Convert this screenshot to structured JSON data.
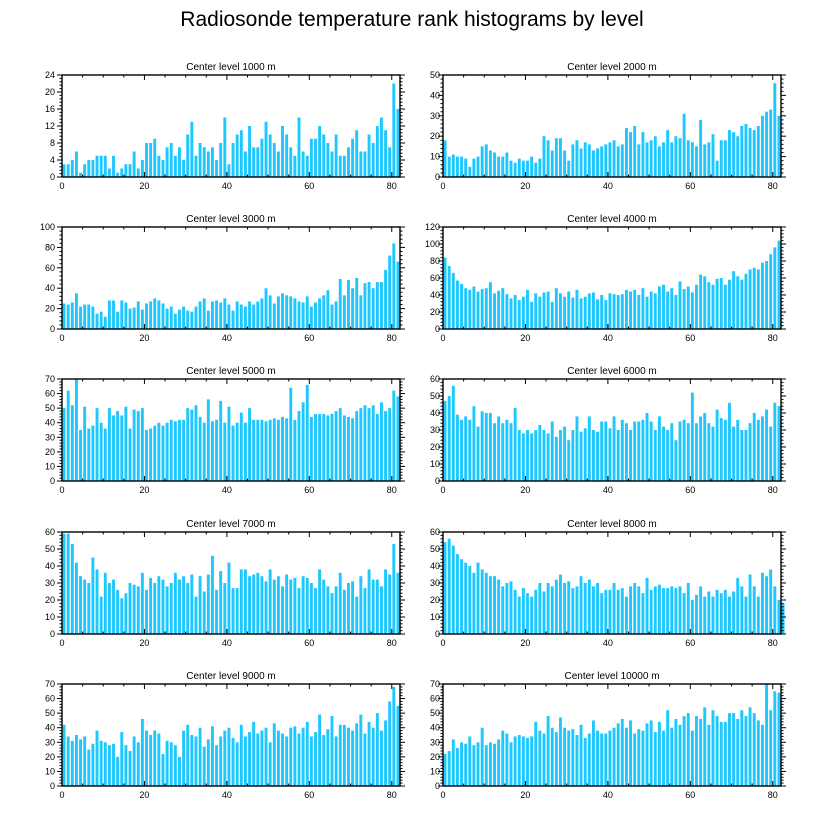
{
  "figure": {
    "title": "Radiosonde temperature rank histograms by level",
    "bar_color": "#1ec8ff"
  },
  "chart_data": [
    {
      "type": "bar",
      "title": "Center level 1000 m",
      "xlim": [
        0,
        82
      ],
      "ylim": [
        0,
        24
      ],
      "xticks": [
        0,
        20,
        40,
        60,
        80
      ],
      "yticks": [
        0,
        4,
        8,
        12,
        16,
        20,
        24
      ],
      "values": [
        3,
        3,
        4,
        6,
        1,
        3,
        4,
        4,
        5,
        5,
        5,
        2,
        5,
        1,
        2,
        3,
        3,
        6,
        2,
        4,
        8,
        8,
        9,
        5,
        4,
        7,
        8,
        5,
        7,
        4,
        10,
        13,
        5,
        8,
        7,
        6,
        7,
        4,
        8,
        14,
        3,
        8,
        10,
        11,
        6,
        12,
        7,
        7,
        9,
        13,
        10,
        8,
        6,
        12,
        10,
        7,
        5,
        14,
        6,
        5,
        9,
        9,
        12,
        10,
        8,
        6,
        10,
        5,
        5,
        7,
        9,
        11,
        6,
        6,
        10,
        8,
        12,
        14,
        11,
        7,
        22,
        16
      ]
    },
    {
      "type": "bar",
      "title": "Center level 2000 m",
      "xlim": [
        0,
        82
      ],
      "ylim": [
        0,
        50
      ],
      "xticks": [
        0,
        20,
        40,
        60,
        80
      ],
      "yticks": [
        0,
        10,
        20,
        30,
        40,
        50
      ],
      "values": [
        18,
        10,
        11,
        10,
        10,
        9,
        5,
        9,
        10,
        15,
        16,
        13,
        12,
        10,
        10,
        12,
        8,
        7,
        9,
        8,
        8,
        10,
        7,
        9,
        20,
        18,
        13,
        19,
        19,
        13,
        8,
        16,
        18,
        14,
        17,
        16,
        13,
        14,
        15,
        16,
        17,
        18,
        15,
        16,
        24,
        22,
        25,
        16,
        22,
        17,
        18,
        20,
        15,
        17,
        23,
        17,
        20,
        19,
        31,
        18,
        17,
        15,
        28,
        16,
        17,
        21,
        8,
        18,
        18,
        23,
        22,
        20,
        25,
        26,
        24,
        23,
        25,
        30,
        32,
        33,
        46,
        30
      ]
    },
    {
      "type": "bar",
      "title": "Center level 3000 m",
      "xlim": [
        0,
        82
      ],
      "ylim": [
        0,
        100
      ],
      "xticks": [
        0,
        20,
        40,
        60,
        80
      ],
      "yticks": [
        0,
        20,
        40,
        60,
        80,
        100
      ],
      "values": [
        25,
        24,
        26,
        35,
        22,
        24,
        24,
        22,
        15,
        17,
        12,
        28,
        28,
        17,
        28,
        26,
        20,
        21,
        27,
        19,
        25,
        27,
        30,
        28,
        25,
        20,
        22,
        15,
        19,
        22,
        18,
        17,
        22,
        27,
        30,
        18,
        27,
        28,
        26,
        30,
        24,
        18,
        27,
        24,
        22,
        27,
        24,
        27,
        30,
        40,
        33,
        25,
        32,
        35,
        33,
        32,
        30,
        27,
        26,
        32,
        22,
        26,
        30,
        33,
        38,
        24,
        27,
        49,
        33,
        48,
        40,
        50,
        33,
        45,
        46,
        40,
        46,
        46,
        58,
        72,
        84,
        66
      ]
    },
    {
      "type": "bar",
      "title": "Center level 4000 m",
      "xlim": [
        0,
        82
      ],
      "ylim": [
        0,
        120
      ],
      "xticks": [
        0,
        20,
        40,
        60,
        80
      ],
      "yticks": [
        0,
        20,
        40,
        60,
        80,
        100,
        120
      ],
      "values": [
        84,
        74,
        66,
        57,
        53,
        48,
        46,
        50,
        44,
        47,
        48,
        55,
        42,
        45,
        48,
        41,
        36,
        40,
        34,
        38,
        46,
        32,
        42,
        38,
        43,
        44,
        32,
        48,
        42,
        38,
        44,
        37,
        46,
        36,
        38,
        42,
        43,
        35,
        40,
        34,
        42,
        41,
        40,
        41,
        46,
        44,
        46,
        40,
        48,
        38,
        44,
        42,
        50,
        52,
        44,
        48,
        40,
        56,
        47,
        50,
        43,
        52,
        64,
        62,
        55,
        52,
        59,
        60,
        52,
        58,
        68,
        62,
        58,
        65,
        70,
        72,
        70,
        78,
        80,
        88,
        96,
        104
      ]
    },
    {
      "type": "bar",
      "title": "Center level 5000 m",
      "xlim": [
        0,
        82
      ],
      "ylim": [
        0,
        70
      ],
      "xticks": [
        0,
        20,
        40,
        60,
        80
      ],
      "yticks": [
        0,
        10,
        20,
        30,
        40,
        50,
        60,
        70
      ],
      "values": [
        50,
        62,
        52,
        70,
        35,
        51,
        36,
        38,
        50,
        40,
        36,
        50,
        45,
        48,
        45,
        51,
        36,
        49,
        48,
        50,
        35,
        36,
        38,
        40,
        38,
        40,
        42,
        41,
        42,
        42,
        50,
        49,
        52,
        44,
        40,
        56,
        41,
        42,
        55,
        40,
        51,
        38,
        40,
        47,
        40,
        50,
        42,
        42,
        42,
        41,
        42,
        43,
        42,
        44,
        43,
        64,
        42,
        48,
        54,
        66,
        44,
        46,
        46,
        46,
        45,
        46,
        48,
        50,
        45,
        44,
        43,
        48,
        50,
        52,
        50,
        52,
        46,
        54,
        48,
        50,
        62,
        58
      ]
    },
    {
      "type": "bar",
      "title": "Center level 6000 m",
      "xlim": [
        0,
        82
      ],
      "ylim": [
        0,
        60
      ],
      "xticks": [
        0,
        20,
        40,
        60,
        80
      ],
      "yticks": [
        0,
        10,
        20,
        30,
        40,
        50,
        60
      ],
      "values": [
        47,
        50,
        56,
        39,
        36,
        38,
        36,
        44,
        32,
        41,
        40,
        40,
        34,
        38,
        34,
        36,
        34,
        43,
        30,
        28,
        30,
        28,
        30,
        33,
        30,
        28,
        35,
        26,
        30,
        32,
        24,
        30,
        38,
        29,
        31,
        38,
        30,
        29,
        35,
        35,
        31,
        38,
        30,
        36,
        34,
        30,
        35,
        35,
        36,
        40,
        35,
        30,
        38,
        32,
        30,
        34,
        24,
        35,
        36,
        34,
        52,
        34,
        38,
        40,
        34,
        32,
        42,
        37,
        36,
        46,
        32,
        36,
        30,
        30,
        34,
        40,
        36,
        38,
        42,
        32,
        46,
        44
      ]
    },
    {
      "type": "bar",
      "title": "Center level 7000 m",
      "xlim": [
        0,
        82
      ],
      "ylim": [
        0,
        60
      ],
      "xticks": [
        0,
        20,
        40,
        60,
        80
      ],
      "yticks": [
        0,
        10,
        20,
        30,
        40,
        50,
        60
      ],
      "values": [
        59,
        59,
        53,
        42,
        34,
        32,
        30,
        45,
        38,
        22,
        36,
        30,
        32,
        26,
        21,
        24,
        30,
        29,
        28,
        36,
        26,
        33,
        30,
        34,
        32,
        28,
        30,
        36,
        32,
        34,
        30,
        35,
        22,
        34,
        25,
        35,
        46,
        26,
        37,
        30,
        42,
        27,
        27,
        38,
        38,
        34,
        35,
        36,
        34,
        31,
        38,
        32,
        34,
        28,
        35,
        32,
        33,
        27,
        34,
        33,
        30,
        27,
        38,
        32,
        28,
        24,
        28,
        36,
        26,
        30,
        31,
        22,
        34,
        27,
        38,
        32,
        32,
        28,
        38,
        35,
        53,
        36
      ]
    },
    {
      "type": "bar",
      "title": "Center level 8000 m",
      "xlim": [
        0,
        82
      ],
      "ylim": [
        0,
        60
      ],
      "xticks": [
        0,
        20,
        40,
        60,
        80
      ],
      "yticks": [
        0,
        10,
        20,
        30,
        40,
        50,
        60
      ],
      "values": [
        54,
        56,
        52,
        47,
        44,
        42,
        40,
        36,
        42,
        38,
        36,
        34,
        34,
        32,
        28,
        30,
        31,
        26,
        22,
        27,
        24,
        22,
        26,
        30,
        25,
        30,
        28,
        32,
        35,
        30,
        31,
        27,
        28,
        34,
        30,
        32,
        28,
        30,
        24,
        26,
        26,
        30,
        26,
        27,
        22,
        28,
        30,
        28,
        24,
        33,
        26,
        28,
        29,
        27,
        27,
        28,
        27,
        28,
        24,
        30,
        20,
        23,
        28,
        22,
        25,
        22,
        26,
        24,
        26,
        22,
        25,
        33,
        28,
        22,
        35,
        28,
        22,
        36,
        34,
        38,
        28,
        20,
        18
      ]
    },
    {
      "type": "bar",
      "title": "Center level 9000 m",
      "xlim": [
        0,
        82
      ],
      "ylim": [
        0,
        70
      ],
      "xticks": [
        0,
        20,
        40,
        60,
        80
      ],
      "yticks": [
        0,
        10,
        20,
        30,
        40,
        50,
        60,
        70
      ],
      "values": [
        42,
        34,
        31,
        35,
        32,
        34,
        25,
        29,
        38,
        31,
        30,
        28,
        29,
        20,
        37,
        28,
        24,
        34,
        30,
        46,
        38,
        35,
        38,
        36,
        22,
        31,
        30,
        28,
        20,
        38,
        42,
        35,
        34,
        40,
        27,
        32,
        41,
        28,
        34,
        38,
        40,
        33,
        30,
        42,
        34,
        37,
        44,
        36,
        38,
        40,
        30,
        43,
        38,
        36,
        34,
        40,
        41,
        36,
        40,
        44,
        34,
        37,
        49,
        35,
        39,
        48,
        34,
        42,
        42,
        40,
        38,
        43,
        49,
        36,
        44,
        40,
        50,
        38,
        45,
        58,
        68,
        55
      ]
    },
    {
      "type": "bar",
      "title": "Center level 10000 m",
      "xlim": [
        0,
        82
      ],
      "ylim": [
        0,
        70
      ],
      "xticks": [
        0,
        20,
        40,
        60,
        80
      ],
      "yticks": [
        0,
        10,
        20,
        30,
        40,
        50,
        60,
        70
      ],
      "values": [
        22,
        24,
        32,
        26,
        30,
        29,
        34,
        28,
        30,
        40,
        28,
        30,
        29,
        32,
        38,
        36,
        30,
        34,
        35,
        34,
        33,
        34,
        44,
        38,
        36,
        48,
        40,
        37,
        47,
        40,
        38,
        39,
        35,
        42,
        33,
        36,
        45,
        38,
        36,
        36,
        38,
        40,
        43,
        46,
        40,
        45,
        36,
        39,
        38,
        43,
        45,
        37,
        44,
        38,
        52,
        40,
        46,
        42,
        48,
        50,
        38,
        48,
        46,
        54,
        42,
        52,
        48,
        44,
        44,
        50,
        50,
        46,
        52,
        48,
        54,
        50,
        45,
        42,
        70,
        52,
        65,
        64
      ]
    }
  ]
}
